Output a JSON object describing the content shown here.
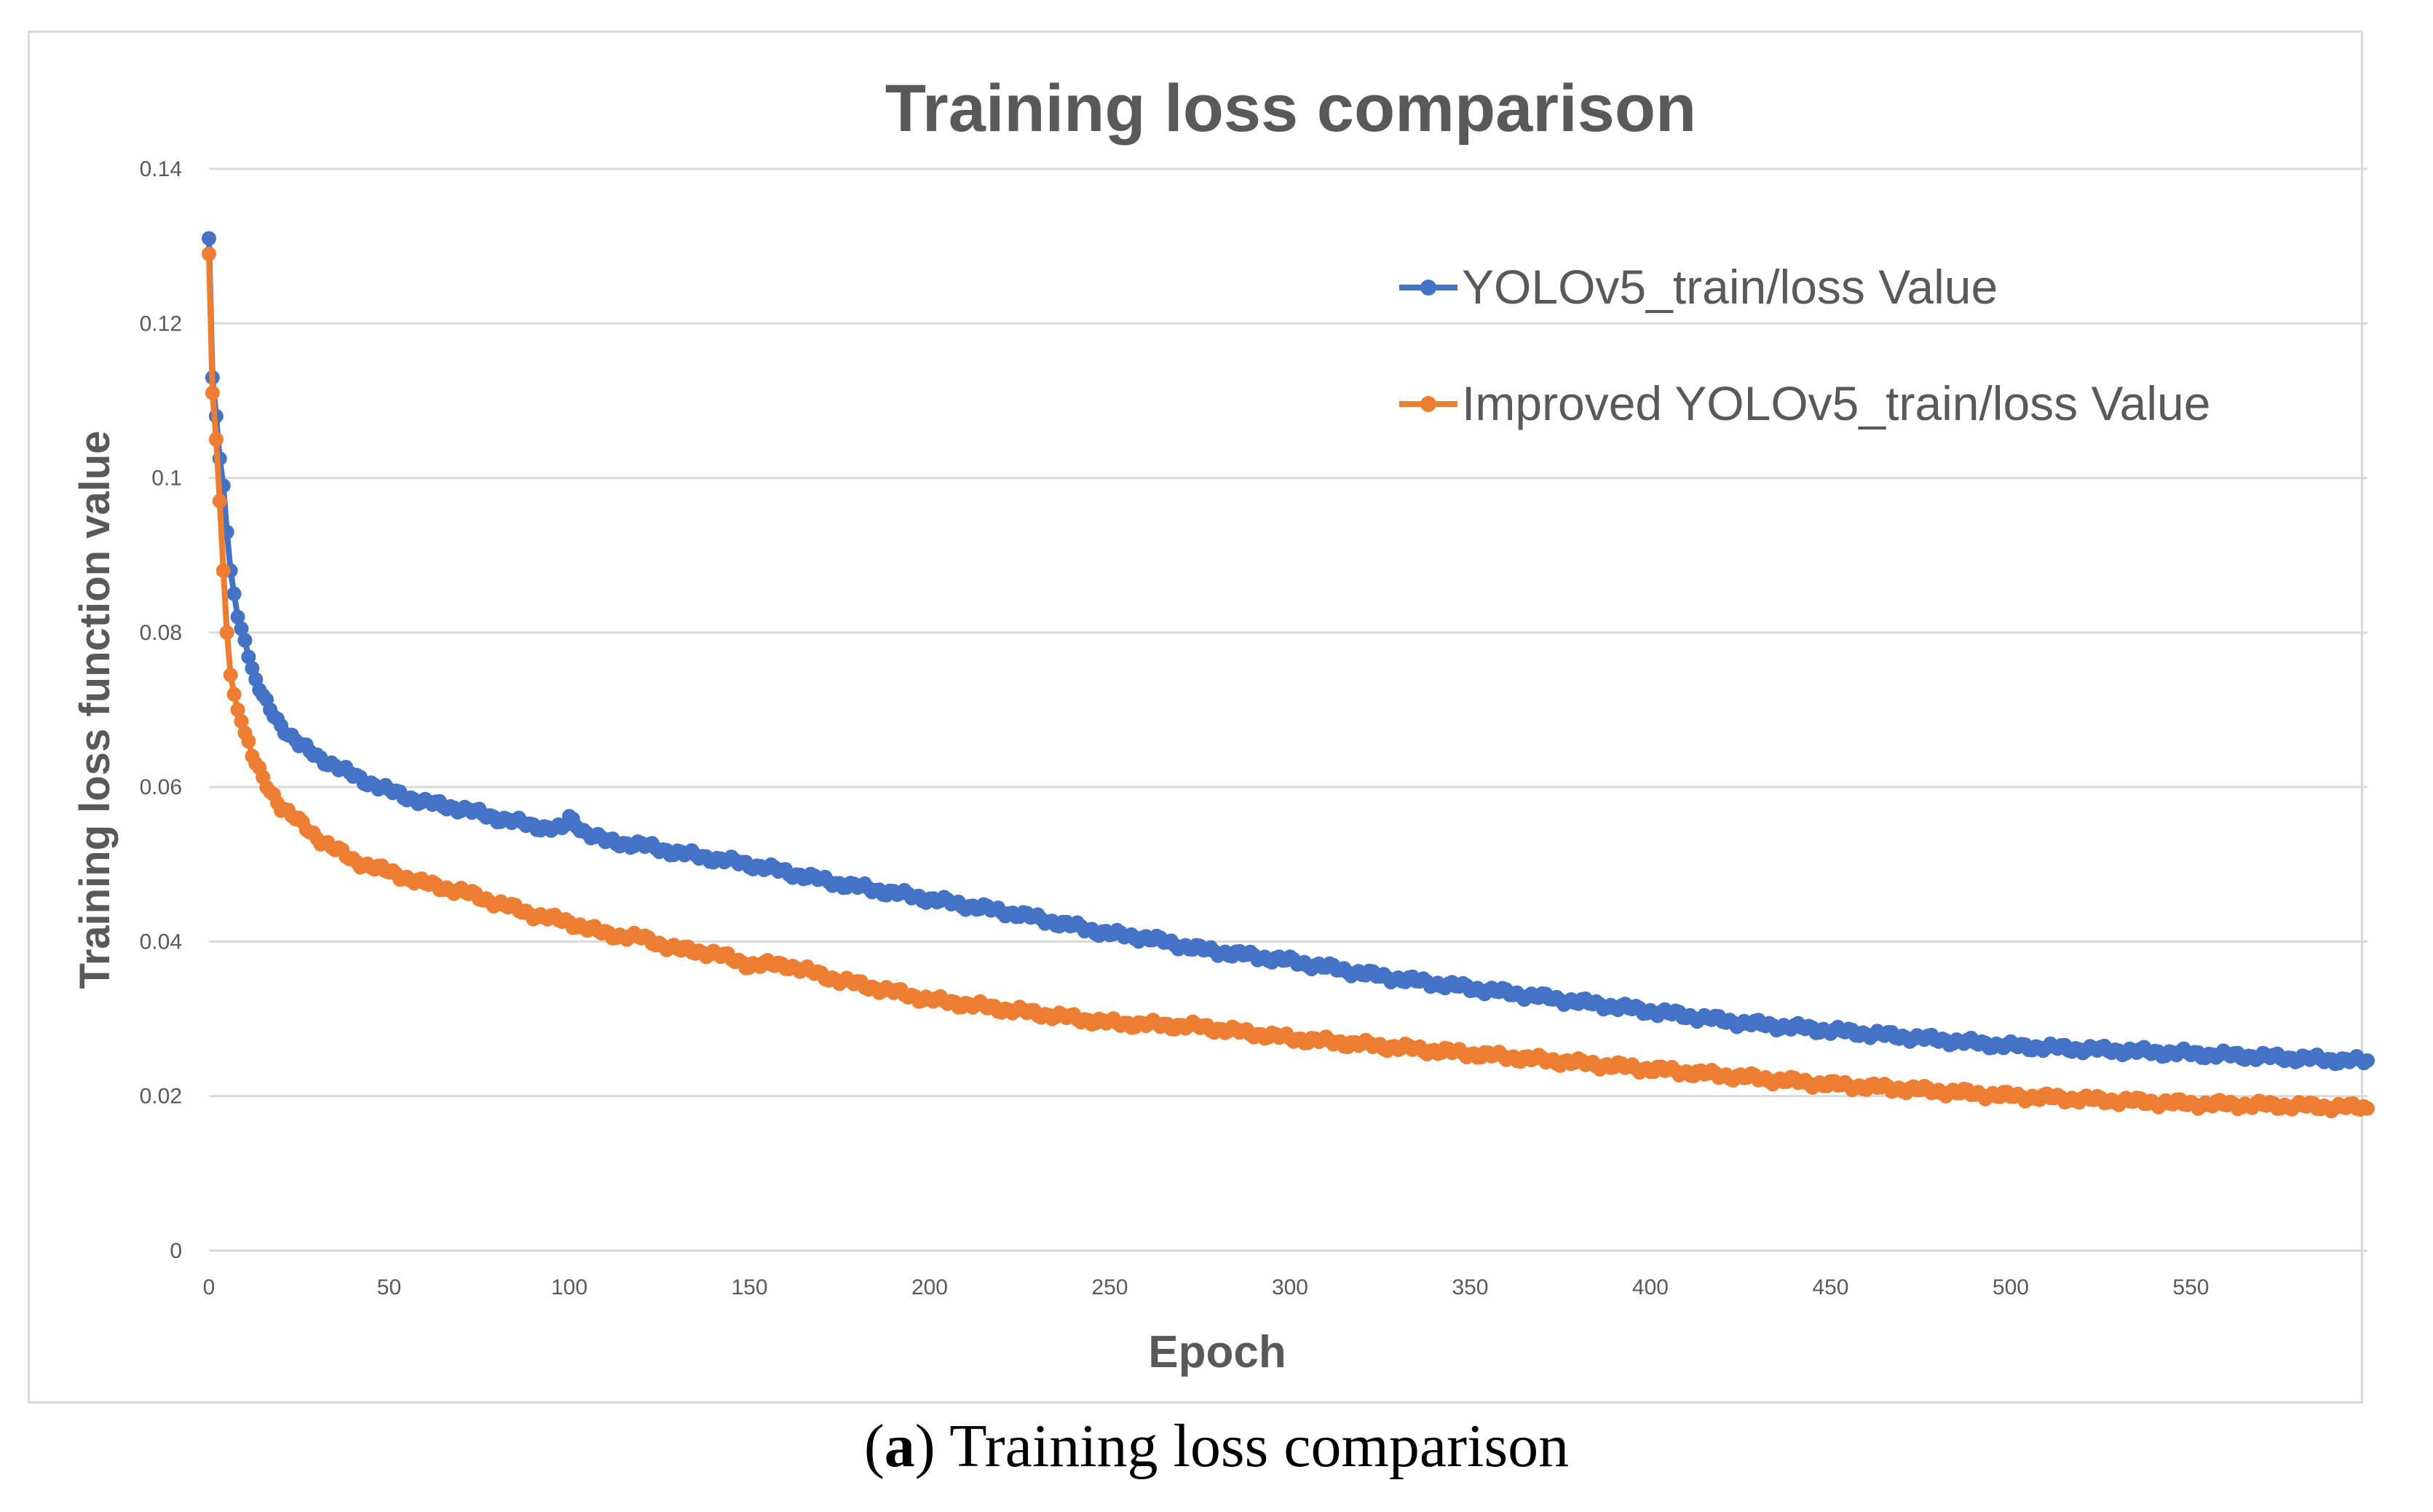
{
  "caption": {
    "label": "a",
    "open": "(",
    "close": ")",
    "text": " Training loss comparison"
  },
  "chart_data": {
    "type": "line",
    "title": "Training loss comparison",
    "xlabel": "Epoch",
    "ylabel": "Training loss function value",
    "xlim": [
      0,
      599
    ],
    "ylim": [
      0,
      0.14
    ],
    "x_ticks": [
      "0",
      "50",
      "100",
      "150",
      "200",
      "250",
      "300",
      "350",
      "400",
      "450",
      "500",
      "550"
    ],
    "y_ticks": [
      "0",
      "0.02",
      "0.04",
      "0.06",
      "0.08",
      "0.1",
      "0.12",
      "0.14"
    ],
    "grid": "horizontal",
    "legend_position": "top-right",
    "colors": {
      "baseline": "#4472c4",
      "improved": "#ed7d31",
      "grid": "#d9d9d9",
      "text": "#595959"
    },
    "series": [
      {
        "name": "YOLOv5_train/loss Value",
        "color": "#4472c4",
        "x": [
          0,
          1,
          2,
          3,
          4,
          5,
          6,
          8,
          10,
          12,
          15,
          20,
          25,
          30,
          40,
          50,
          60,
          70,
          80,
          90,
          98,
          100,
          105,
          110,
          120,
          130,
          150,
          175,
          200,
          225,
          250,
          260,
          275,
          300,
          325,
          350,
          375,
          400,
          425,
          450,
          475,
          500,
          525,
          550,
          575,
          599
        ],
        "values": [
          0.131,
          0.113,
          0.108,
          0.1025,
          0.099,
          0.093,
          0.088,
          0.082,
          0.079,
          0.075,
          0.0715,
          0.068,
          0.0655,
          0.064,
          0.0615,
          0.0595,
          0.058,
          0.0572,
          0.056,
          0.055,
          0.0545,
          0.056,
          0.054,
          0.053,
          0.0525,
          0.0515,
          0.05,
          0.0475,
          0.0455,
          0.0435,
          0.041,
          0.0405,
          0.039,
          0.0375,
          0.0355,
          0.034,
          0.0325,
          0.031,
          0.0295,
          0.0285,
          0.0275,
          0.0265,
          0.026,
          0.0255,
          0.025,
          0.0245
        ]
      },
      {
        "name": "Improved YOLOv5_train/loss Value",
        "color": "#ed7d31",
        "x": [
          0,
          1,
          2,
          3,
          4,
          5,
          6,
          7,
          8,
          10,
          12,
          15,
          20,
          25,
          30,
          40,
          50,
          60,
          70,
          80,
          90,
          100,
          110,
          120,
          130,
          140,
          150,
          160,
          175,
          200,
          225,
          250,
          275,
          300,
          325,
          350,
          375,
          400,
          425,
          450,
          475,
          500,
          525,
          550,
          575,
          599
        ],
        "values": [
          0.129,
          0.111,
          0.105,
          0.097,
          0.088,
          0.08,
          0.0745,
          0.072,
          0.07,
          0.067,
          0.064,
          0.061,
          0.0575,
          0.0555,
          0.0535,
          0.0505,
          0.049,
          0.0475,
          0.0465,
          0.045,
          0.0435,
          0.0425,
          0.041,
          0.0405,
          0.039,
          0.0385,
          0.037,
          0.037,
          0.035,
          0.0325,
          0.031,
          0.0295,
          0.029,
          0.0275,
          0.0265,
          0.0255,
          0.0245,
          0.0235,
          0.0225,
          0.0215,
          0.0208,
          0.02,
          0.0195,
          0.019,
          0.0188,
          0.0185
        ]
      }
    ]
  }
}
